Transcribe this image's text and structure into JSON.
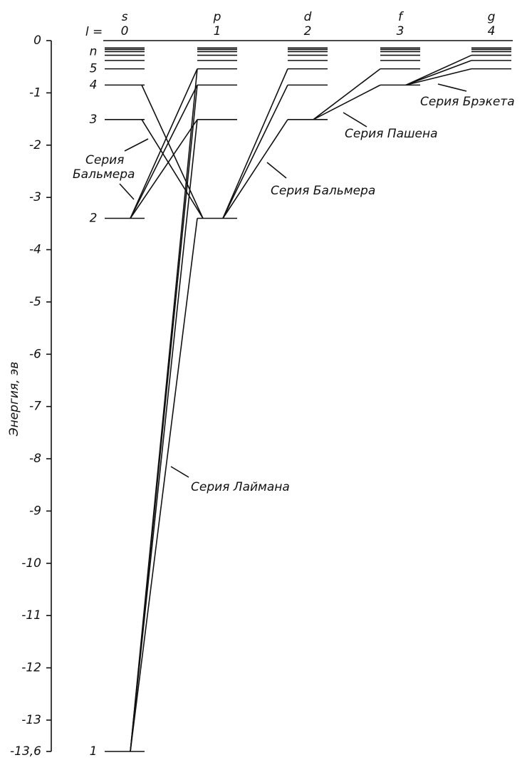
{
  "axis": {
    "label": "Энергия, эв",
    "ylim": [
      -13.6,
      0
    ],
    "yticks": [
      0,
      -1,
      -2,
      -3,
      -4,
      -5,
      -6,
      -7,
      -8,
      -9,
      -10,
      -11,
      -12,
      -13,
      {
        "value": -13.6,
        "label": "-13,6"
      }
    ]
  },
  "header": {
    "l_label": "l =",
    "columns": [
      {
        "letter": "s",
        "l": 0
      },
      {
        "letter": "p",
        "l": 1
      },
      {
        "letter": "d",
        "l": 2
      },
      {
        "letter": "f",
        "l": 3
      },
      {
        "letter": "g",
        "l": 4
      }
    ]
  },
  "levels": {
    "labels": [
      "1",
      "2",
      "3",
      "4",
      "5",
      "n"
    ],
    "energies": [
      -13.6,
      -3.4,
      -1.51,
      -0.85,
      -0.54,
      -0.38,
      -0.28,
      -0.21,
      -0.17,
      -0.14
    ]
  },
  "annotations": {
    "balmer_left": [
      "Серия",
      "Бальмера"
    ],
    "balmer_right": "Серия  Бальмера",
    "lyman": "Серия  Лаймана",
    "paschen": "Серия  Пашена",
    "brackett": "Серия  Брэкета"
  }
}
